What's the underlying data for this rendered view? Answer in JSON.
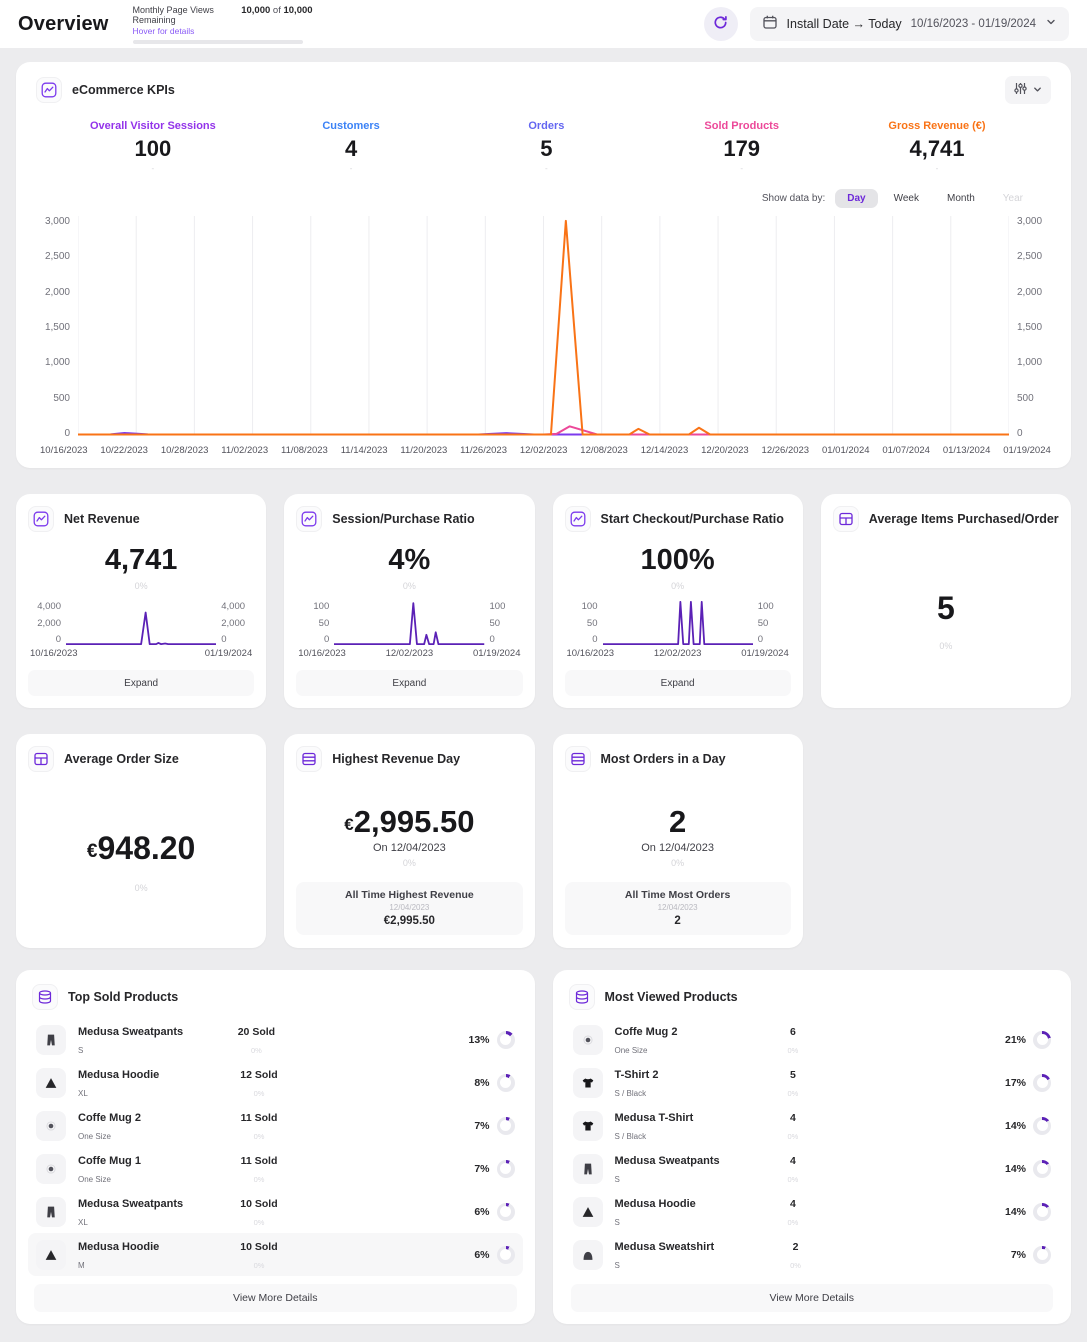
{
  "theme": {
    "accent": "#6d28d9",
    "donut_arc": "#5b21b6",
    "donut_track": "#e9e9ee"
  },
  "header": {
    "title": "Overview",
    "page_views": {
      "label": "Monthly Page Views Remaining",
      "hover_link": "Hover for details",
      "value": "10,000",
      "of": "of",
      "total": "10,000"
    },
    "date_picker": {
      "preset": "Install Date → Today",
      "range": "10/16/2023 - 01/19/2024"
    }
  },
  "kpi_card": {
    "title": "eCommerce KPIs",
    "metrics": [
      {
        "label": "Overall Visitor Sessions",
        "value": "100",
        "color": "#9333ea",
        "dash": "-"
      },
      {
        "label": "Customers",
        "value": "4",
        "color": "#3b82f6",
        "dash": "-"
      },
      {
        "label": "Orders",
        "value": "5",
        "color": "#6366f1",
        "dash": "-"
      },
      {
        "label": "Sold Products",
        "value": "179",
        "color": "#ec4899",
        "dash": "-"
      },
      {
        "label": "Gross Revenue (€)",
        "value": "4,741",
        "color": "#f97316",
        "dash": "-"
      }
    ],
    "show_data_by": {
      "label": "Show data by:",
      "options": [
        "Day",
        "Week",
        "Month",
        "Year"
      ],
      "selected": "Day",
      "disabled": "Year"
    }
  },
  "chart_data": [
    {
      "id": "kpi-timeseries",
      "type": "line",
      "grid": true,
      "ymax": 3000,
      "ylim": [
        0,
        3000
      ],
      "y_ticks": [
        "3,000",
        "2,500",
        "2,000",
        "1,500",
        "1,000",
        "500",
        "0"
      ],
      "x_labels": [
        "10/16/2023",
        "10/22/2023",
        "10/28/2023",
        "11/02/2023",
        "11/08/2023",
        "11/14/2023",
        "11/20/2023",
        "11/26/2023",
        "12/02/2023",
        "12/08/2023",
        "12/14/2023",
        "12/20/2023",
        "12/26/2023",
        "01/01/2024",
        "01/07/2024",
        "01/13/2024",
        "01/19/2024"
      ],
      "series": [
        {
          "name": "Overall Visitor Sessions",
          "color": "#7c3aed",
          "points": [
            [
              0,
              0
            ],
            [
              0.035,
              2
            ],
            [
              0.05,
              22
            ],
            [
              0.075,
              2
            ],
            [
              0.43,
              0
            ],
            [
              0.46,
              20
            ],
            [
              0.49,
              0
            ],
            [
              1,
              0
            ]
          ]
        },
        {
          "name": "Sold Products",
          "color": "#ec4899",
          "points": [
            [
              0,
              0
            ],
            [
              0.5,
              0
            ],
            [
              0.514,
              10
            ],
            [
              0.528,
              115
            ],
            [
              0.558,
              0
            ],
            [
              1,
              0
            ]
          ]
        },
        {
          "name": "Gross Revenue (€)",
          "color": "#f97316",
          "points": [
            [
              0,
              0
            ],
            [
              0.508,
              0
            ],
            [
              0.524,
              2995
            ],
            [
              0.542,
              0
            ],
            [
              0.592,
              0
            ],
            [
              0.602,
              80
            ],
            [
              0.614,
              0
            ],
            [
              0.656,
              0
            ],
            [
              0.667,
              95
            ],
            [
              0.679,
              0
            ],
            [
              1,
              0
            ]
          ]
        }
      ]
    },
    {
      "id": "net-revenue-spark",
      "type": "line",
      "grid": false,
      "ymax": 4000,
      "ylim": [
        0,
        4000
      ],
      "y_ticks": [
        "4,000",
        "2,000",
        "0"
      ],
      "x_labels": [
        "10/16/2023",
        "01/19/2024"
      ],
      "series": [
        {
          "name": "Net Revenue",
          "color": "#5b21b6",
          "points": [
            [
              0,
              0
            ],
            [
              0.5,
              0
            ],
            [
              0.53,
              2995
            ],
            [
              0.557,
              0
            ],
            [
              0.6,
              0
            ],
            [
              0.615,
              110
            ],
            [
              0.633,
              0
            ],
            [
              0.66,
              60
            ],
            [
              0.68,
              0
            ],
            [
              1,
              0
            ]
          ]
        }
      ]
    },
    {
      "id": "session-purchase-spark",
      "type": "line",
      "grid": false,
      "ymax": 100,
      "ylim": [
        0,
        100
      ],
      "y_ticks": [
        "100",
        "50",
        "0"
      ],
      "x_labels": [
        "10/16/2023",
        "12/02/2023",
        "01/19/2024"
      ],
      "series": [
        {
          "name": "Session/Purchase Ratio",
          "color": "#5b21b6",
          "points": [
            [
              0,
              0
            ],
            [
              0.505,
              0
            ],
            [
              0.528,
              97
            ],
            [
              0.552,
              0
            ],
            [
              0.6,
              0
            ],
            [
              0.615,
              22
            ],
            [
              0.633,
              0
            ],
            [
              0.663,
              0
            ],
            [
              0.677,
              28
            ],
            [
              0.695,
              0
            ],
            [
              1,
              0
            ]
          ]
        }
      ]
    },
    {
      "id": "checkout-purchase-spark",
      "type": "line",
      "grid": false,
      "ymax": 100,
      "ylim": [
        0,
        100
      ],
      "y_ticks": [
        "100",
        "50",
        "0"
      ],
      "x_labels": [
        "10/16/2023",
        "12/02/2023",
        "01/19/2024"
      ],
      "series": [
        {
          "name": "Start Checkout/Purchase Ratio",
          "color": "#5b21b6",
          "points": [
            [
              0,
              0
            ],
            [
              0.5,
              0
            ],
            [
              0.515,
              100
            ],
            [
              0.534,
              0
            ],
            [
              0.571,
              0
            ],
            [
              0.585,
              100
            ],
            [
              0.603,
              0
            ],
            [
              0.644,
              0
            ],
            [
              0.657,
              100
            ],
            [
              0.674,
              0
            ],
            [
              1,
              0
            ]
          ]
        }
      ]
    }
  ],
  "summary_cards": [
    {
      "title": "Net Revenue",
      "value": "4,741",
      "delta": "0%",
      "expand_label": "Expand"
    },
    {
      "title": "Session/Purchase Ratio",
      "value": "4%",
      "delta": "0%",
      "expand_label": "Expand"
    },
    {
      "title": "Start Checkout/Purchase Ratio",
      "value": "100%",
      "delta": "0%",
      "expand_label": "Expand"
    },
    {
      "title": "Average Items Purchased/Order",
      "value": "5",
      "delta": "0%"
    }
  ],
  "stat_cards": [
    {
      "title": "Average Order Size",
      "currency": "€",
      "value": "948.20",
      "delta": "0%"
    },
    {
      "title": "Highest Revenue Day",
      "currency": "€",
      "value": "2,995.50",
      "sub": "On 12/04/2023",
      "delta": "0%",
      "alltime": {
        "label": "All Time Highest Revenue",
        "date": "12/04/2023",
        "value": "€2,995.50"
      }
    },
    {
      "title": "Most Orders in a Day",
      "currency": "",
      "value": "2",
      "sub": "On 12/04/2023",
      "delta": "0%",
      "alltime": {
        "label": "All Time Most Orders",
        "date": "12/04/2023",
        "value": "2"
      }
    }
  ],
  "product_lists": {
    "top_sold": {
      "title": "Top Sold Products",
      "button": "View More Details",
      "items": [
        {
          "name": "Medusa Sweatpants",
          "variant": "S",
          "count": "20 Sold",
          "delta": "0%",
          "pct": "13%",
          "pct_num": 13,
          "icon": "pants-icon"
        },
        {
          "name": "Medusa Hoodie",
          "variant": "XL",
          "count": "12 Sold",
          "delta": "0%",
          "pct": "8%",
          "pct_num": 8,
          "icon": "hoodie-icon"
        },
        {
          "name": "Coffe Mug 2",
          "variant": "One Size",
          "count": "11 Sold",
          "delta": "0%",
          "pct": "7%",
          "pct_num": 7,
          "icon": "mug-icon"
        },
        {
          "name": "Coffe Mug 1",
          "variant": "One Size",
          "count": "11 Sold",
          "delta": "0%",
          "pct": "7%",
          "pct_num": 7,
          "icon": "mug-icon"
        },
        {
          "name": "Medusa Sweatpants",
          "variant": "XL",
          "count": "10 Sold",
          "delta": "0%",
          "pct": "6%",
          "pct_num": 6,
          "icon": "pants-icon"
        },
        {
          "name": "Medusa Hoodie",
          "variant": "M",
          "count": "10 Sold",
          "delta": "0%",
          "pct": "6%",
          "pct_num": 6,
          "icon": "hoodie-icon"
        }
      ]
    },
    "most_viewed": {
      "title": "Most Viewed Products",
      "button": "View More Details",
      "items": [
        {
          "name": "Coffe Mug 2",
          "variant": "One Size",
          "count": "6",
          "delta": "0%",
          "pct": "21%",
          "pct_num": 21,
          "icon": "mug-icon"
        },
        {
          "name": "T-Shirt 2",
          "variant": "S / Black",
          "count": "5",
          "delta": "0%",
          "pct": "17%",
          "pct_num": 17,
          "icon": "tshirt-icon"
        },
        {
          "name": "Medusa T-Shirt",
          "variant": "S / Black",
          "count": "4",
          "delta": "0%",
          "pct": "14%",
          "pct_num": 14,
          "icon": "tshirt-icon"
        },
        {
          "name": "Medusa Sweatpants",
          "variant": "S",
          "count": "4",
          "delta": "0%",
          "pct": "14%",
          "pct_num": 14,
          "icon": "pants-icon"
        },
        {
          "name": "Medusa Hoodie",
          "variant": "S",
          "count": "4",
          "delta": "0%",
          "pct": "14%",
          "pct_num": 14,
          "icon": "hoodie-icon"
        },
        {
          "name": "Medusa Sweatshirt",
          "variant": "S",
          "count": "2",
          "delta": "0%",
          "pct": "7%",
          "pct_num": 7,
          "icon": "sweatshirt-icon"
        }
      ]
    }
  }
}
